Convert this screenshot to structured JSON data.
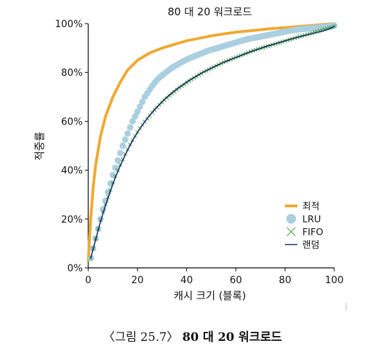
{
  "chart_data": {
    "type": "line",
    "title": "80 대 20 워크로드",
    "xlabel": "캐시 크기 (블록)",
    "ylabel": "적중률",
    "xlim": [
      0,
      100
    ],
    "ylim": [
      0,
      100
    ],
    "x_ticks": [
      "0",
      "20",
      "40",
      "60",
      "80",
      "100"
    ],
    "y_ticks": [
      "0%",
      "20%",
      "40%",
      "60%",
      "80%",
      "100%"
    ],
    "legend_position": "bottom-right",
    "series": [
      {
        "name": "최적",
        "style": "thick-line",
        "color": "#f0a830",
        "x": [
          0,
          1,
          2,
          3,
          5,
          7,
          10,
          13,
          16,
          20,
          25,
          30,
          35,
          40,
          45,
          50,
          55,
          60,
          65,
          70,
          75,
          80,
          85,
          90,
          95,
          100
        ],
        "y": [
          3,
          20,
          33,
          42,
          54,
          62,
          70,
          76,
          81,
          85,
          88,
          90,
          91.5,
          93,
          94,
          95,
          95.8,
          96.5,
          97,
          97.5,
          98,
          98.4,
          98.8,
          99.2,
          99.6,
          100
        ]
      },
      {
        "name": "LRU",
        "style": "dots",
        "color": "#a9cfe0",
        "x": [
          1,
          2,
          3,
          4,
          5,
          6,
          7,
          8,
          9,
          10,
          11,
          12,
          13,
          14,
          15,
          16,
          17,
          18,
          19,
          20,
          21,
          22,
          23,
          24,
          25,
          26,
          27,
          28,
          29,
          30,
          31,
          32,
          33,
          34,
          35,
          36,
          37,
          38,
          39,
          40,
          41,
          42,
          43,
          44,
          45,
          46,
          47,
          48,
          49,
          50,
          51,
          52,
          53,
          54,
          55,
          56,
          57,
          58,
          59,
          60,
          61,
          62,
          63,
          64,
          65,
          66,
          67,
          68,
          69,
          70,
          71,
          72,
          73,
          74,
          75,
          76,
          77,
          78,
          79,
          80,
          81,
          82,
          83,
          84,
          85,
          86,
          87,
          88,
          89,
          90,
          91,
          92,
          93,
          94,
          95,
          96,
          97,
          98,
          99,
          100
        ],
        "y": [
          4,
          8,
          12,
          16,
          20,
          24,
          27.5,
          31,
          34.5,
          38,
          41,
          44,
          47,
          50,
          52.5,
          55,
          57.5,
          60,
          62,
          64,
          66,
          68,
          70,
          71.5,
          73,
          74.5,
          75.8,
          77,
          78,
          78.8,
          79.6,
          80.4,
          81.2,
          81.9,
          82.5,
          83.1,
          83.7,
          84.3,
          84.8,
          85.3,
          85.8,
          86.2,
          86.6,
          87,
          87.4,
          87.8,
          88.2,
          88.6,
          89,
          89.3,
          89.6,
          89.9,
          90.2,
          90.5,
          90.8,
          91.1,
          91.4,
          91.7,
          92,
          92.3,
          92.6,
          92.9,
          93.2,
          93.5,
          93.7,
          93.9,
          94.1,
          94.3,
          94.5,
          94.7,
          94.9,
          95.1,
          95.3,
          95.5,
          95.7,
          95.9,
          96.1,
          96.3,
          96.5,
          96.7,
          96.9,
          97.1,
          97.3,
          97.5,
          97.6,
          97.7,
          97.8,
          97.9,
          98,
          98.1,
          98.2,
          98.3,
          98.4,
          98.5,
          98.6,
          98.7,
          98.8,
          98.9,
          99,
          99.2
        ]
      },
      {
        "name": "FIFO",
        "style": "x-markers",
        "color": "#3a9a3a",
        "x": [
          1,
          2,
          3,
          4,
          5,
          6,
          7,
          8,
          9,
          10,
          11,
          12,
          13,
          14,
          15,
          16,
          17,
          18,
          19,
          20,
          21,
          22,
          23,
          24,
          25,
          26,
          27,
          28,
          29,
          30,
          31,
          32,
          33,
          34,
          35,
          36,
          37,
          38,
          39,
          40,
          41,
          42,
          43,
          44,
          45,
          46,
          47,
          48,
          49,
          50,
          51,
          52,
          53,
          54,
          55,
          56,
          57,
          58,
          59,
          60,
          61,
          62,
          63,
          64,
          65,
          66,
          67,
          68,
          69,
          70,
          71,
          72,
          73,
          74,
          75,
          76,
          77,
          78,
          79,
          80,
          81,
          82,
          83,
          84,
          85,
          86,
          87,
          88,
          89,
          90,
          91,
          92,
          93,
          94,
          95,
          96,
          97,
          98,
          99,
          100
        ],
        "y": [
          4,
          8,
          12,
          16,
          19.5,
          23,
          26,
          29,
          32,
          35,
          37.5,
          40,
          42.3,
          44.5,
          46.6,
          48.6,
          50.5,
          52.3,
          54,
          55.6,
          57.1,
          58.5,
          59.8,
          61.1,
          62.3,
          63.5,
          64.6,
          65.7,
          66.7,
          67.7,
          68.7,
          69.6,
          70.5,
          71.3,
          72.1,
          72.9,
          73.7,
          74.4,
          75.1,
          75.8,
          76.5,
          77.2,
          77.8,
          78.4,
          79,
          79.6,
          80.2,
          80.7,
          81.2,
          81.7,
          82.2,
          82.7,
          83.2,
          83.7,
          84.2,
          84.6,
          85,
          85.4,
          85.8,
          86.2,
          86.6,
          87,
          87.4,
          87.8,
          88.2,
          88.6,
          89,
          89.3,
          89.6,
          89.9,
          90.2,
          90.5,
          90.8,
          91.1,
          91.4,
          91.7,
          92,
          92.3,
          92.6,
          92.9,
          93.2,
          93.5,
          93.8,
          94.1,
          94.4,
          94.7,
          95,
          95.3,
          95.6,
          95.9,
          96.2,
          96.5,
          96.8,
          97.1,
          97.4,
          97.7,
          98,
          98.3,
          98.6,
          99
        ]
      },
      {
        "name": "랜덤",
        "style": "thin-line",
        "color": "#1a2a6c",
        "x": [
          1,
          3,
          5,
          7,
          9,
          11,
          13,
          15,
          17,
          19,
          21,
          23,
          25,
          27,
          29,
          31,
          33,
          35,
          37,
          39,
          41,
          43,
          45,
          47,
          49,
          51,
          53,
          55,
          57,
          59,
          61,
          63,
          65,
          67,
          69,
          71,
          73,
          75,
          77,
          79,
          81,
          83,
          85,
          87,
          89,
          91,
          93,
          95,
          97,
          99,
          100
        ],
        "y": [
          4,
          11.5,
          19,
          25.5,
          31.5,
          37,
          41.8,
          46.2,
          50.2,
          53.8,
          57,
          59.9,
          62.5,
          64.9,
          67,
          69,
          70.8,
          72.5,
          74,
          75.4,
          76.8,
          78,
          79.2,
          80.3,
          81.3,
          82.3,
          83.2,
          84.1,
          84.9,
          85.7,
          86.5,
          87.3,
          88.1,
          88.8,
          89.5,
          90.2,
          90.9,
          91.5,
          92.1,
          92.7,
          93.3,
          93.9,
          94.4,
          94.9,
          95.4,
          95.9,
          96.4,
          96.9,
          97.5,
          98.3,
          98.8
        ]
      }
    ]
  },
  "caption": {
    "prefix": "〈그림 25.7〉",
    "title": "80 대 20 워크로드"
  }
}
